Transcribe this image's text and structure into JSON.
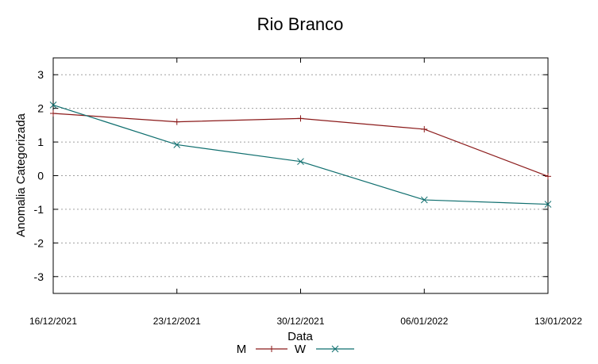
{
  "chart_data": {
    "type": "line",
    "title": "Rio Branco",
    "xlabel": "Data",
    "ylabel": "Anomalia Categorizada",
    "categories": [
      "16/12/2021",
      "23/12/2021",
      "30/12/2021",
      "06/01/2022",
      "13/01/2022"
    ],
    "yticks": [
      "3",
      "2",
      "1",
      "0",
      "-1",
      "-2",
      "-3"
    ],
    "ylim": [
      -3.5,
      3.5
    ],
    "grid": true,
    "legend_position": "bottom-center",
    "series": [
      {
        "name": "M",
        "marker": "plus",
        "color": "#8b1a1a",
        "values": [
          1.85,
          1.6,
          1.7,
          1.38,
          -0.02
        ]
      },
      {
        "name": "W",
        "marker": "x",
        "color": "#0e6e6e",
        "values": [
          2.1,
          0.92,
          0.42,
          -0.72,
          -0.85
        ]
      }
    ]
  }
}
